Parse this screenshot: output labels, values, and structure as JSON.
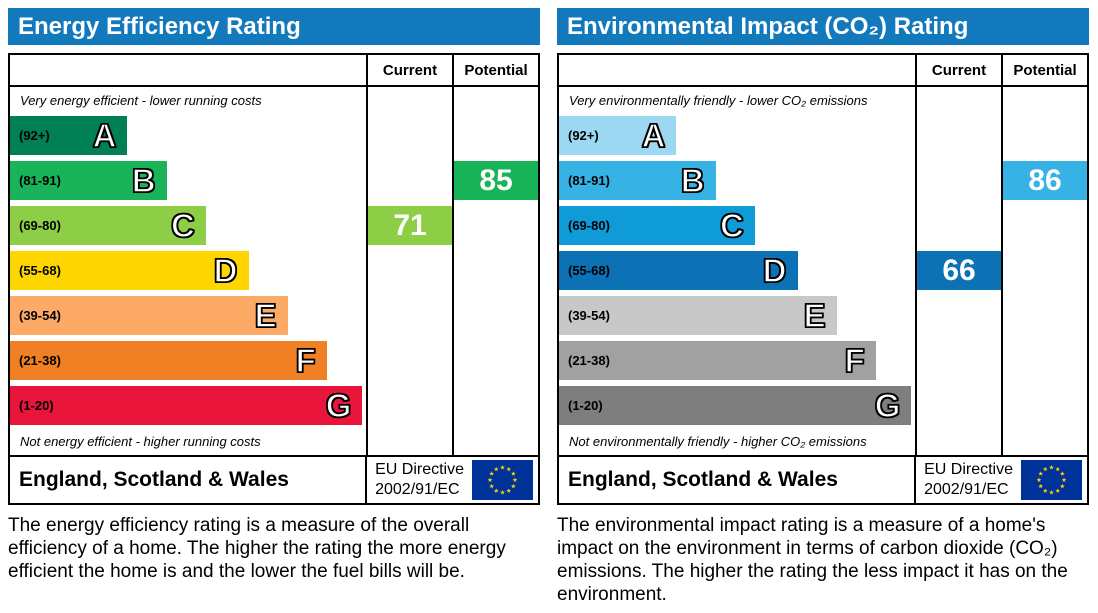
{
  "accent": {
    "header_bg": "#1379bd",
    "header_text": "#ffffff",
    "eu_flag_bg": "#003399",
    "eu_flag_stars": "#ffcc00"
  },
  "chart_data": [
    {
      "type": "bar",
      "title": "Energy Efficiency Rating",
      "columns": {
        "current": "Current",
        "potential": "Potential"
      },
      "top_note": "Very energy efficient - lower running costs",
      "bottom_note": "Not energy efficient - higher running costs",
      "bands": [
        {
          "letter": "A",
          "range_label": "(92+)",
          "range": [
            92,
            100
          ],
          "color": "#008054",
          "width_pct": 33
        },
        {
          "letter": "B",
          "range_label": "(81-91)",
          "range": [
            81,
            91
          ],
          "color": "#19b459",
          "width_pct": 44
        },
        {
          "letter": "C",
          "range_label": "(69-80)",
          "range": [
            69,
            80
          ],
          "color": "#8dce46",
          "width_pct": 55
        },
        {
          "letter": "D",
          "range_label": "(55-68)",
          "range": [
            55,
            68
          ],
          "color": "#ffd500",
          "width_pct": 67
        },
        {
          "letter": "E",
          "range_label": "(39-54)",
          "range": [
            39,
            54
          ],
          "color": "#fcaa65",
          "width_pct": 78
        },
        {
          "letter": "F",
          "range_label": "(21-38)",
          "range": [
            21,
            38
          ],
          "color": "#ef8023",
          "width_pct": 89
        },
        {
          "letter": "G",
          "range_label": "(1-20)",
          "range": [
            1,
            20
          ],
          "color": "#e9153b",
          "width_pct": 99
        }
      ],
      "current": {
        "value": 71,
        "band": "C",
        "color": "#8dce46"
      },
      "potential": {
        "value": 85,
        "band": "B",
        "color": "#19b459"
      },
      "footer": {
        "region": "England, Scotland & Wales",
        "directive_line1": "EU Directive",
        "directive_line2": "2002/91/EC"
      },
      "description": "The energy efficiency rating is a measure of the overall efficiency of a home. The higher the rating the more energy efficient the home is and the lower the fuel bills will be."
    },
    {
      "type": "bar",
      "title": "Environmental Impact (CO₂) Rating",
      "columns": {
        "current": "Current",
        "potential": "Potential"
      },
      "top_note": "Very environmentally friendly - lower CO₂ emissions",
      "bottom_note": "Not environmentally friendly - higher CO₂ emissions",
      "bands": [
        {
          "letter": "A",
          "range_label": "(92+)",
          "range": [
            92,
            100
          ],
          "color": "#9dd8f3",
          "width_pct": 33
        },
        {
          "letter": "B",
          "range_label": "(81-91)",
          "range": [
            81,
            91
          ],
          "color": "#37b2e4",
          "width_pct": 44
        },
        {
          "letter": "C",
          "range_label": "(69-80)",
          "range": [
            69,
            80
          ],
          "color": "#0f9ad8",
          "width_pct": 55
        },
        {
          "letter": "D",
          "range_label": "(55-68)",
          "range": [
            55,
            68
          ],
          "color": "#0c72b5",
          "width_pct": 67
        },
        {
          "letter": "E",
          "range_label": "(39-54)",
          "range": [
            39,
            54
          ],
          "color": "#c8c8c8",
          "width_pct": 78
        },
        {
          "letter": "F",
          "range_label": "(21-38)",
          "range": [
            21,
            38
          ],
          "color": "#a1a1a1",
          "width_pct": 89
        },
        {
          "letter": "G",
          "range_label": "(1-20)",
          "range": [
            1,
            20
          ],
          "color": "#7e7e7e",
          "width_pct": 99
        }
      ],
      "current": {
        "value": 66,
        "band": "D",
        "color": "#0c72b5"
      },
      "potential": {
        "value": 86,
        "band": "B",
        "color": "#37b2e4"
      },
      "footer": {
        "region": "England, Scotland & Wales",
        "directive_line1": "EU Directive",
        "directive_line2": "2002/91/EC"
      },
      "description": "The environmental impact rating is a measure of a home's impact on the environment in terms of carbon dioxide (CO₂) emissions. The higher the rating the less impact it has on the environment."
    }
  ]
}
